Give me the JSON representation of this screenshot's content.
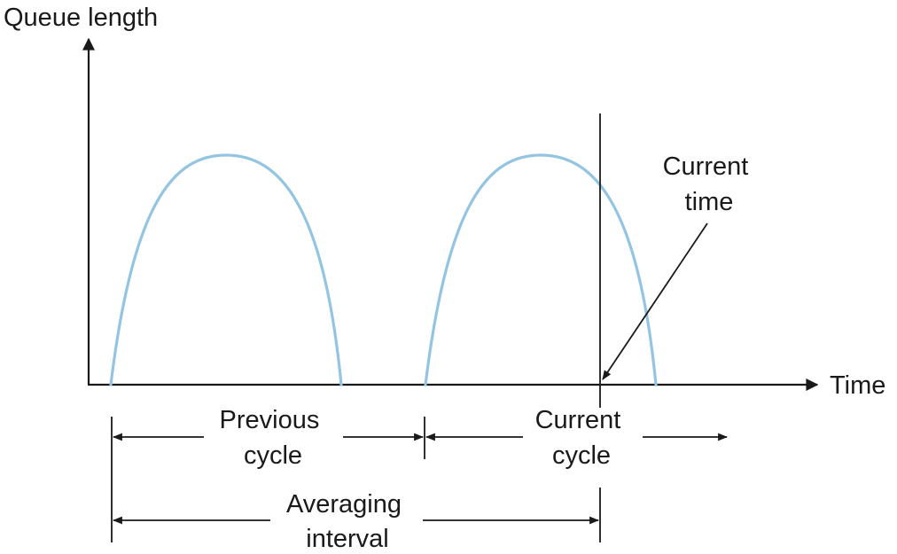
{
  "axes": {
    "y_label": "Queue length",
    "x_label": "Time"
  },
  "annotations": {
    "current_time": [
      "Current",
      "time"
    ],
    "previous_cycle": [
      "Previous",
      "cycle"
    ],
    "current_cycle": [
      "Current",
      "cycle"
    ],
    "averaging_interval": [
      "Averaging",
      "interval"
    ]
  },
  "colors": {
    "curve": "#93c5e2",
    "ink": "#1a1a1a"
  }
}
